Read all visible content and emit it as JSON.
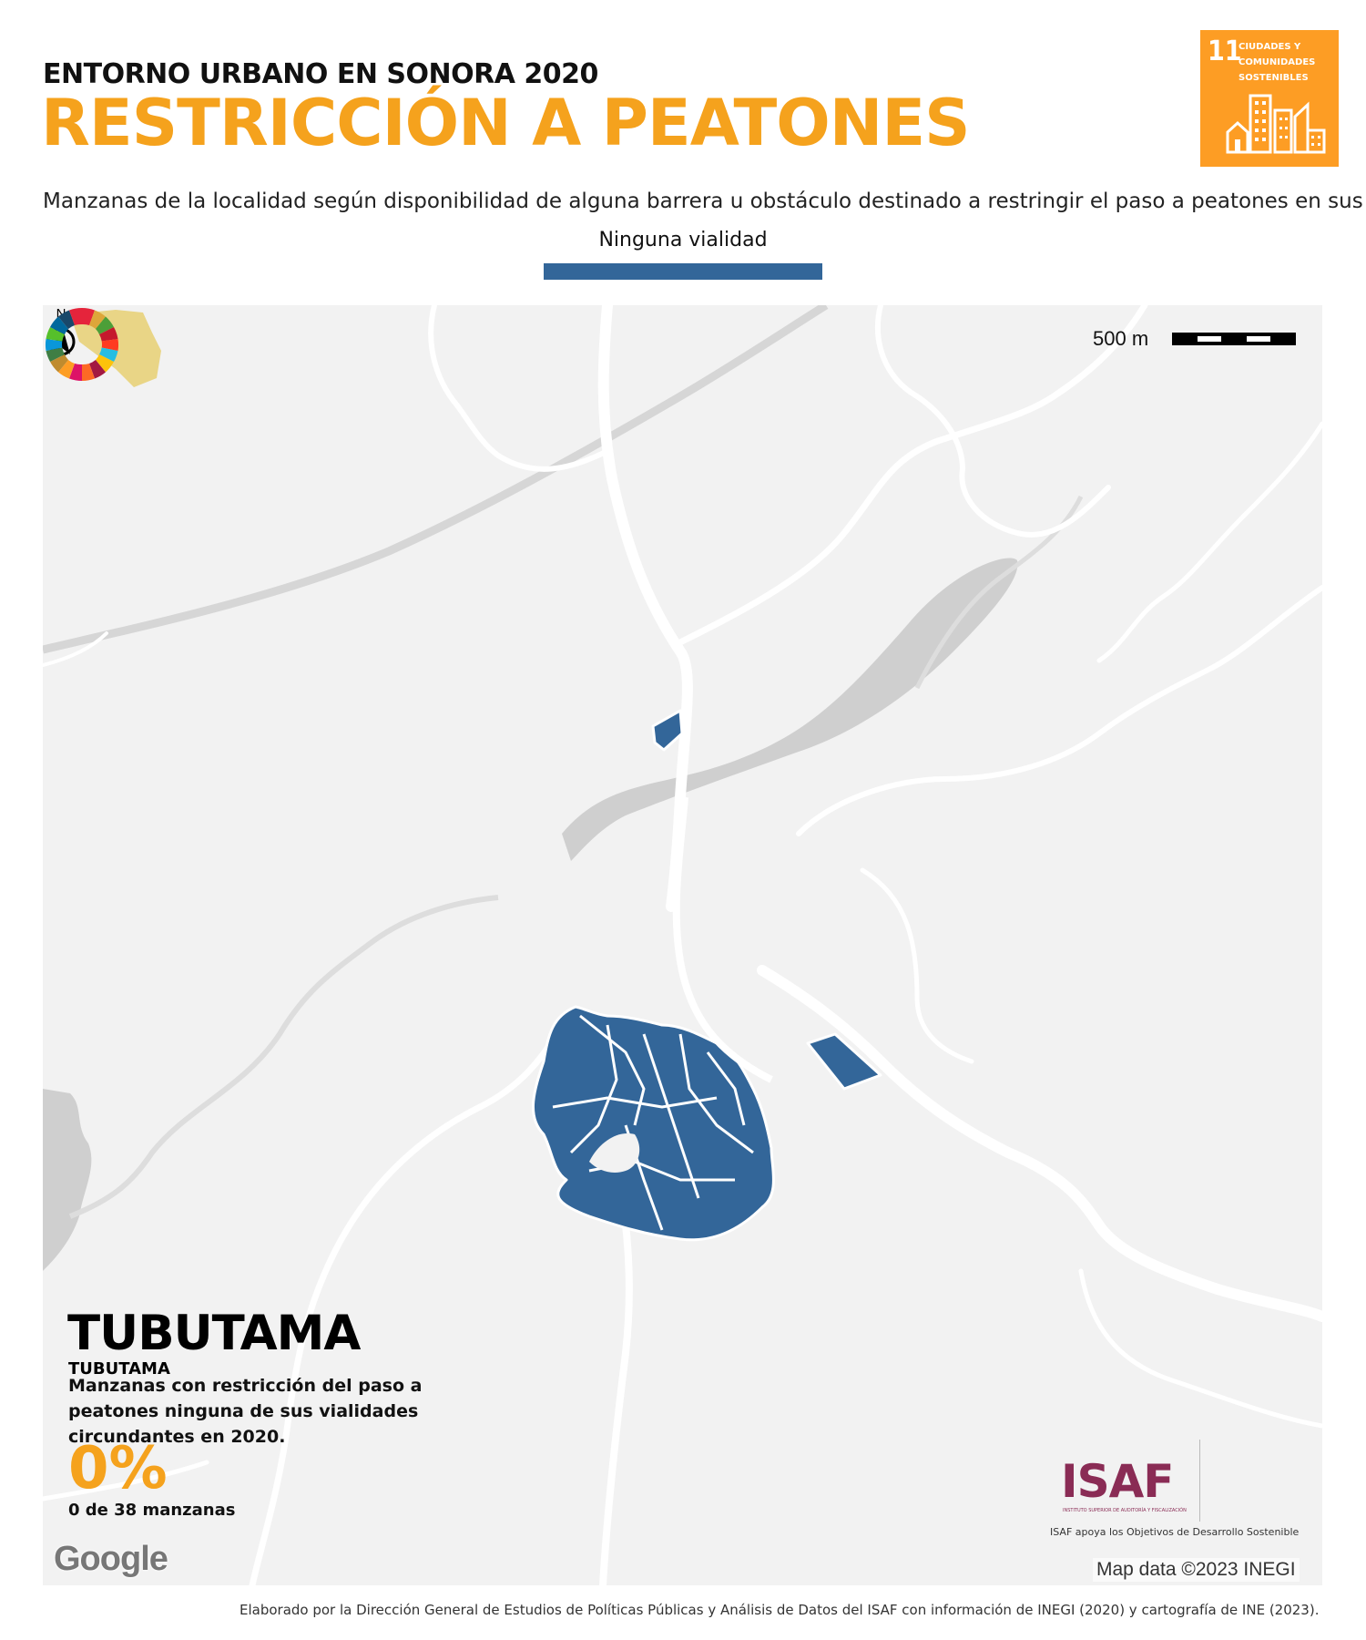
{
  "header": {
    "pretitle": "ENTORNO URBANO EN SONORA 2020",
    "title": "RESTRICCIÓN A PEATONES",
    "subtitle": "Manzanas de la localidad según disponibilidad de alguna barrera u obstáculo destinado a restringir el paso a peatones en sus vialidades"
  },
  "legend": {
    "label": "Ninguna vialidad",
    "color": "#336699"
  },
  "sdg_badge": {
    "number": "11",
    "text_line1": "CIUDADES Y",
    "text_line2": "COMUNIDADES",
    "text_line3": "SOSTENIBLES",
    "color": "#fd9d24"
  },
  "map": {
    "scale_label": "500 m",
    "north_label": "N",
    "municipality": "TUBUTAMA",
    "locality": "TUBUTAMA",
    "description": "Manzanas con restricción del paso a peatones ninguna de sus vialidades circundantes en 2020.",
    "percent": "0%",
    "count": "0 de 38 manzanas",
    "google_label": "Google",
    "attribution": "Map data ©2023 INEGI",
    "block_color": "#336699"
  },
  "logos": {
    "isaf": "ISAF",
    "isaf_small": "INSTITUTO SUPERIOR DE AUDITORÍA Y FISCALIZACIÓN",
    "caption": "ISAF apoya los Objetivos de Desarrollo Sostenible"
  },
  "footer": "Elaborado por la Dirección General de Estudios de Políticas Públicas y Análisis de Datos del ISAF con información de INEGI (2020) y cartografía de INE (2023)."
}
